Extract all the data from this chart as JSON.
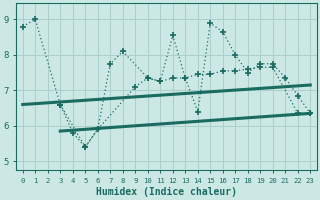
{
  "xlabel": "Humidex (Indice chaleur)",
  "bg_color": "#cce8e5",
  "grid_color": "#aacfcc",
  "line_color": "#1a6b60",
  "xlim": [
    -0.5,
    23.5
  ],
  "ylim": [
    4.75,
    9.45
  ],
  "yticks": [
    5,
    6,
    7,
    8,
    9
  ],
  "xticks": [
    0,
    1,
    2,
    3,
    4,
    5,
    6,
    7,
    8,
    9,
    10,
    11,
    12,
    13,
    14,
    15,
    16,
    17,
    18,
    19,
    20,
    21,
    22,
    23
  ],
  "line1_x": [
    0,
    1,
    3,
    4,
    5,
    6,
    7,
    8,
    10,
    11,
    12,
    13,
    14,
    15,
    16,
    17,
    18,
    19,
    20,
    21,
    22,
    23
  ],
  "line1_y": [
    8.8,
    9.0,
    6.6,
    5.8,
    5.4,
    5.9,
    7.75,
    8.1,
    7.35,
    7.25,
    8.55,
    7.35,
    6.4,
    8.9,
    8.65,
    8.0,
    7.5,
    7.75,
    7.75,
    7.35,
    6.85,
    6.35
  ],
  "line2_x": [
    3,
    5,
    6,
    9,
    10,
    11,
    12,
    13,
    14,
    15,
    16,
    17,
    18,
    19,
    20,
    22,
    23
  ],
  "line2_y": [
    6.6,
    5.4,
    5.9,
    7.1,
    7.35,
    7.25,
    7.35,
    7.35,
    7.45,
    7.45,
    7.55,
    7.55,
    7.6,
    7.65,
    7.65,
    6.35,
    6.35
  ],
  "trend1_x": [
    0,
    23
  ],
  "trend1_y": [
    6.6,
    7.15
  ],
  "trend2_x": [
    3,
    23
  ],
  "trend2_y": [
    5.85,
    6.35
  ]
}
